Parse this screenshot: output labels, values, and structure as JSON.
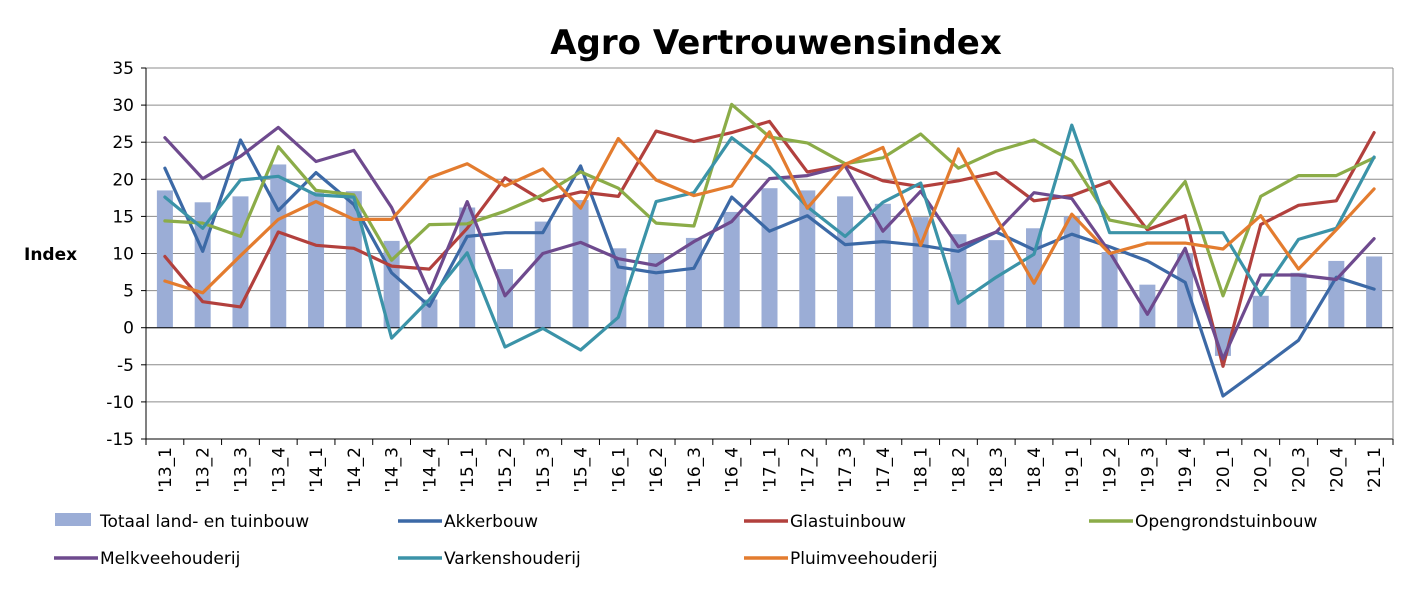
{
  "chart_data": {
    "type": "bar+line",
    "title": "Agro Vertrouwensindex",
    "ylabel": "Index",
    "xlabel": "",
    "ylim": [
      -15,
      35
    ],
    "yticks": [
      -15,
      -10,
      -5,
      0,
      5,
      10,
      15,
      20,
      25,
      30,
      35
    ],
    "grid": true,
    "legend_position": "bottom",
    "categories": [
      "'13_1",
      "'13_2",
      "'13_3",
      "'13_4",
      "'14_1",
      "'14_2",
      "'14_3",
      "'14_4",
      "'15_1",
      "'15_2",
      "'15_3",
      "'15_4",
      "'16_1",
      "'16_2",
      "'16_3",
      "'16_4",
      "'17_1",
      "'17_2",
      "'17_3",
      "'17_4",
      "'18_1",
      "'18_2",
      "'18_3",
      "'18_4",
      "'19_1",
      "'19_2",
      "'19_3",
      "'19_4",
      "'20_1",
      "'20_2",
      "'20_3",
      "'20_4",
      "'21_1"
    ],
    "series": [
      {
        "name": "Totaal land- en tuinbouw",
        "kind": "bar",
        "color": "#9BADD6",
        "values": [
          18.5,
          16.9,
          17.7,
          22.0,
          18.3,
          18.4,
          11.7,
          3.8,
          16.2,
          7.9,
          14.3,
          17.2,
          10.7,
          10.0,
          12.1,
          15.6,
          18.8,
          18.5,
          17.7,
          16.7,
          14.9,
          12.6,
          11.8,
          13.4,
          15.0,
          10.2,
          5.8,
          10.0,
          -3.8,
          4.3,
          7.4,
          9.0,
          9.6
        ]
      },
      {
        "name": "Akkerbouw",
        "kind": "line",
        "color": "#3C69A6",
        "values": [
          21.5,
          10.3,
          25.3,
          15.8,
          20.9,
          16.6,
          7.4,
          2.9,
          12.3,
          12.8,
          12.8,
          21.8,
          8.2,
          7.4,
          8.0,
          17.6,
          13.0,
          15.1,
          11.2,
          11.6,
          11.1,
          10.3,
          12.9,
          10.5,
          12.6,
          10.9,
          9.0,
          6.1,
          -9.2,
          -5.5,
          -1.7,
          6.8,
          5.2
        ]
      },
      {
        "name": "Glastuinbouw",
        "kind": "line",
        "color": "#B2403D",
        "values": [
          9.6,
          3.5,
          2.8,
          12.9,
          11.1,
          10.7,
          8.3,
          7.9,
          13.4,
          20.2,
          17.1,
          18.3,
          17.7,
          26.5,
          25.1,
          26.3,
          27.8,
          21.0,
          21.9,
          19.8,
          19.0,
          19.8,
          20.9,
          17.1,
          17.8,
          19.7,
          13.2,
          15.1,
          -5.2,
          13.9,
          16.5,
          17.1,
          26.3
        ]
      },
      {
        "name": "Opengrondstuinbouw",
        "kind": "line",
        "color": "#8BAC48",
        "values": [
          14.4,
          14.1,
          12.3,
          24.4,
          18.5,
          17.9,
          9.1,
          13.9,
          14.0,
          15.7,
          17.9,
          21.0,
          18.8,
          14.1,
          13.7,
          30.1,
          25.7,
          24.9,
          22.1,
          22.9,
          26.1,
          21.5,
          23.8,
          25.3,
          22.5,
          14.5,
          13.5,
          19.7,
          4.3,
          17.7,
          20.5,
          20.5,
          22.9
        ]
      },
      {
        "name": "Melkveehouderij",
        "kind": "line",
        "color": "#6E4A8E",
        "values": [
          25.6,
          20.1,
          23.1,
          27.0,
          22.4,
          23.9,
          16.2,
          4.7,
          17.0,
          4.3,
          10.0,
          11.5,
          9.3,
          8.4,
          11.6,
          14.3,
          20.1,
          20.5,
          21.8,
          13.0,
          18.4,
          10.9,
          12.9,
          18.2,
          17.4,
          10.2,
          1.8,
          10.7,
          -4.2,
          7.1,
          7.1,
          6.5,
          12.0
        ]
      },
      {
        "name": "Varkenshouderij",
        "kind": "line",
        "color": "#3B93A8",
        "values": [
          17.6,
          13.4,
          19.9,
          20.4,
          17.9,
          17.6,
          -1.4,
          3.8,
          10.1,
          -2.6,
          -0.1,
          -3.0,
          1.4,
          17.0,
          18.2,
          25.6,
          21.7,
          16.3,
          12.3,
          16.9,
          19.5,
          3.3,
          6.8,
          9.9,
          27.3,
          12.8,
          12.8,
          12.8,
          12.8,
          4.4,
          11.9,
          13.4,
          23.0
        ]
      },
      {
        "name": "Pluimveehouderij",
        "kind": "line",
        "color": "#E37C2F",
        "values": [
          6.3,
          4.7,
          9.7,
          14.6,
          17.0,
          14.6,
          14.6,
          20.2,
          22.1,
          19.1,
          21.4,
          16.1,
          25.5,
          19.9,
          17.8,
          19.1,
          26.4,
          16.1,
          22.0,
          24.3,
          11.1,
          24.1,
          14.8,
          6.0,
          15.3,
          10.0,
          11.4,
          11.4,
          10.6,
          15.1,
          7.9,
          13.2,
          18.7
        ]
      }
    ]
  }
}
